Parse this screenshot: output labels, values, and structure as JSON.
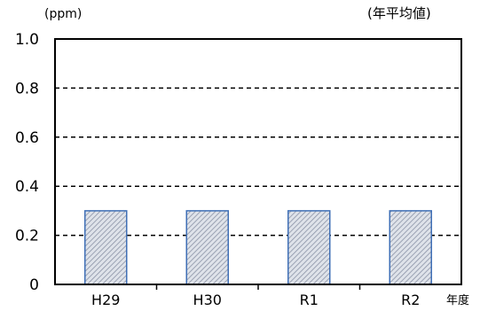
{
  "chart_data": {
    "type": "bar",
    "categories": [
      "H29",
      "H30",
      "R1",
      "R2"
    ],
    "values": [
      0.3,
      0.3,
      0.3,
      0.3
    ],
    "ylim": [
      0,
      1.0
    ],
    "yticks": [
      "0",
      "0.2",
      "0.4",
      "0.6",
      "0.8",
      "1.0"
    ],
    "unit_label": "(ppm)",
    "note": "(年平均値)",
    "xlabel": "年度",
    "grid": "dashed",
    "colors": {
      "bar_fill": "#dfe3ea",
      "bar_hatch": "#8a92a6",
      "bar_border": "#3f6fb6",
      "axis": "#000000"
    }
  }
}
